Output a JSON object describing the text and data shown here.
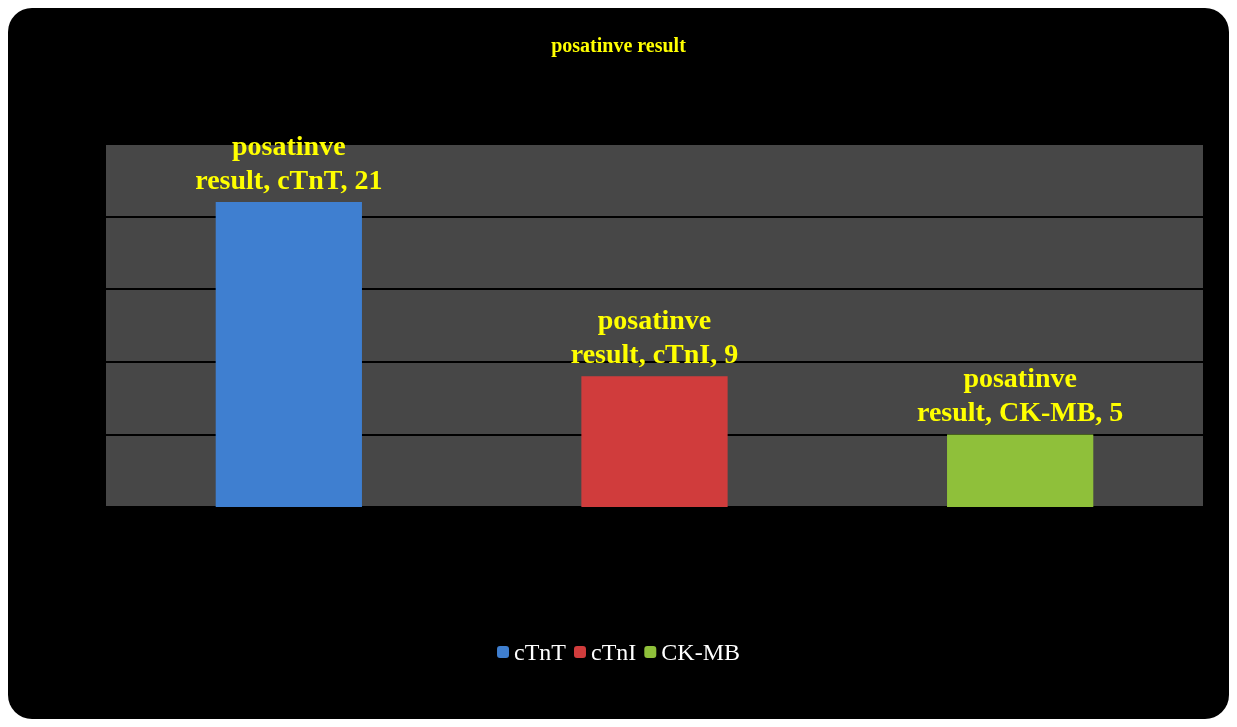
{
  "chart_data": {
    "type": "bar",
    "title": "posatinve result",
    "stacked": true,
    "categories": [
      null,
      null,
      null
    ],
    "series": [
      {
        "name": "cTnT",
        "color": "#3f7fd0",
        "values": [
          21,
          null,
          null
        ],
        "value_labels": [
          "posatinve result, cTnT, 21",
          null,
          null
        ]
      },
      {
        "name": "cTnI",
        "color": "#d03c3c",
        "values": [
          null,
          9,
          null
        ],
        "value_labels": [
          null,
          "posatinve result, cTnI, 9",
          null
        ]
      },
      {
        "name": "CK-MB",
        "color": "#8fc03a",
        "values": [
          null,
          null,
          5
        ],
        "value_labels": [
          null,
          null,
          "posatinve result, CK-MB, 5"
        ]
      }
    ],
    "ylim": [
      0,
      25
    ],
    "yticks": [
      {
        "value": 0,
        "label": null
      },
      {
        "value": 5,
        "label": null
      },
      {
        "value": 10,
        "label": null
      },
      {
        "value": 15,
        "label": null
      },
      {
        "value": 20,
        "label": null
      },
      {
        "value": 25,
        "label": null
      }
    ],
    "grid": "y",
    "legend": "bottom"
  }
}
